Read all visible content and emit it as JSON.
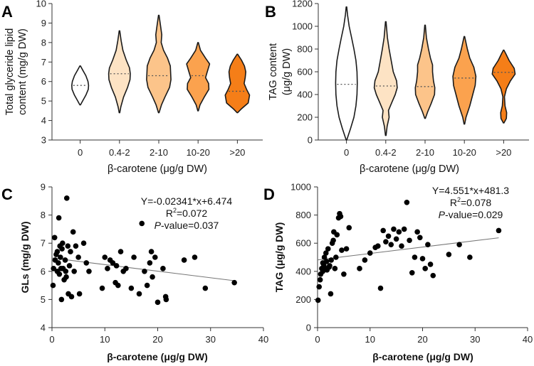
{
  "panels": {
    "A": "A",
    "B": "B",
    "C": "C",
    "D": "D"
  },
  "colors": {
    "violin": [
      "#ffffff",
      "#fde3c4",
      "#fcc48a",
      "#fba24e",
      "#f57e18"
    ],
    "outline": "#1a1a1a",
    "dots": "#000000",
    "fit_line": "#777777"
  },
  "chart_data": [
    {
      "id": "A",
      "type": "violin",
      "categories": [
        "0",
        "0.4-2",
        "2-10",
        "10-20",
        ">20"
      ],
      "xlabel": "β-carotene (μg/g DW)",
      "ylabel": "Total glyceride lipid content (mg/g DW)",
      "ylim": [
        3,
        10
      ],
      "yticks": [
        "3",
        "4",
        "5",
        "6",
        "7",
        "8",
        "9",
        "10"
      ],
      "series": [
        {
          "name": "0",
          "min": 4.8,
          "max": 6.8,
          "median": 5.8,
          "shape": [
            [
              4.8,
              0.02
            ],
            [
              5.0,
              0.18
            ],
            [
              5.3,
              0.42
            ],
            [
              5.6,
              0.6
            ],
            [
              5.8,
              0.62
            ],
            [
              6.0,
              0.58
            ],
            [
              6.3,
              0.42
            ],
            [
              6.6,
              0.18
            ],
            [
              6.8,
              0.02
            ]
          ]
        },
        {
          "name": "0.4-2",
          "min": 4.4,
          "max": 8.6,
          "median": 6.4,
          "shape": [
            [
              4.4,
              0.02
            ],
            [
              4.7,
              0.1
            ],
            [
              5.2,
              0.3
            ],
            [
              5.7,
              0.6
            ],
            [
              6.1,
              0.78
            ],
            [
              6.4,
              0.8
            ],
            [
              6.7,
              0.74
            ],
            [
              7.1,
              0.5
            ],
            [
              7.6,
              0.25
            ],
            [
              8.1,
              0.12
            ],
            [
              8.6,
              0.02
            ]
          ]
        },
        {
          "name": "2-10",
          "min": 4.4,
          "max": 9.4,
          "median": 6.3,
          "shape": [
            [
              4.4,
              0.02
            ],
            [
              4.8,
              0.2
            ],
            [
              5.2,
              0.45
            ],
            [
              5.7,
              0.8
            ],
            [
              6.1,
              0.9
            ],
            [
              6.4,
              0.88
            ],
            [
              6.8,
              0.85
            ],
            [
              7.2,
              0.65
            ],
            [
              7.6,
              0.35
            ],
            [
              8.0,
              0.18
            ],
            [
              8.4,
              0.22
            ],
            [
              8.8,
              0.14
            ],
            [
              9.4,
              0.02
            ]
          ]
        },
        {
          "name": "10-20",
          "min": 4.5,
          "max": 8.0,
          "median": 6.3,
          "shape": [
            [
              4.5,
              0.02
            ],
            [
              4.8,
              0.14
            ],
            [
              5.2,
              0.45
            ],
            [
              5.6,
              0.8
            ],
            [
              5.9,
              0.78
            ],
            [
              6.2,
              0.55
            ],
            [
              6.5,
              0.68
            ],
            [
              6.9,
              0.85
            ],
            [
              7.2,
              0.55
            ],
            [
              7.6,
              0.18
            ],
            [
              8.0,
              0.02
            ]
          ]
        },
        {
          "name": ">20",
          "min": 4.4,
          "max": 7.4,
          "median": 5.5,
          "shape": [
            [
              4.4,
              0.02
            ],
            [
              4.6,
              0.3
            ],
            [
              4.9,
              0.8
            ],
            [
              5.3,
              0.9
            ],
            [
              5.6,
              0.68
            ],
            [
              5.9,
              0.5
            ],
            [
              6.2,
              0.58
            ],
            [
              6.5,
              0.62
            ],
            [
              6.8,
              0.52
            ],
            [
              7.1,
              0.3
            ],
            [
              7.4,
              0.02
            ]
          ]
        }
      ]
    },
    {
      "id": "B",
      "type": "violin",
      "categories": [
        "0",
        "0.4-2",
        "2-10",
        "10-20",
        ">20"
      ],
      "xlabel": "β-carotene (μg/g DW)",
      "ylabel": "TAG content (μg/g DW)",
      "ylim": [
        0,
        1200
      ],
      "yticks": [
        "0",
        "200",
        "400",
        "600",
        "800",
        "1000",
        "1200"
      ],
      "series": [
        {
          "name": "0",
          "min": 0,
          "max": 1170,
          "median": 490,
          "shape": [
            [
              0,
              0.02
            ],
            [
              100,
              0.3
            ],
            [
              200,
              0.55
            ],
            [
              300,
              0.7
            ],
            [
              400,
              0.78
            ],
            [
              500,
              0.8
            ],
            [
              600,
              0.78
            ],
            [
              700,
              0.7
            ],
            [
              800,
              0.55
            ],
            [
              900,
              0.38
            ],
            [
              1000,
              0.2
            ],
            [
              1100,
              0.08
            ],
            [
              1170,
              0.02
            ]
          ]
        },
        {
          "name": "0.4-2",
          "min": 40,
          "max": 1040,
          "median": 475,
          "shape": [
            [
              40,
              0.02
            ],
            [
              120,
              0.1
            ],
            [
              200,
              0.25
            ],
            [
              260,
              0.2
            ],
            [
              330,
              0.45
            ],
            [
              400,
              0.7
            ],
            [
              460,
              0.85
            ],
            [
              520,
              0.8
            ],
            [
              600,
              0.55
            ],
            [
              700,
              0.4
            ],
            [
              800,
              0.25
            ],
            [
              900,
              0.12
            ],
            [
              1040,
              0.02
            ]
          ]
        },
        {
          "name": "2-10",
          "min": 190,
          "max": 1010,
          "median": 470,
          "shape": [
            [
              190,
              0.02
            ],
            [
              250,
              0.2
            ],
            [
              320,
              0.45
            ],
            [
              400,
              0.7
            ],
            [
              460,
              0.72
            ],
            [
              520,
              0.62
            ],
            [
              600,
              0.55
            ],
            [
              660,
              0.55
            ],
            [
              720,
              0.4
            ],
            [
              800,
              0.25
            ],
            [
              900,
              0.1
            ],
            [
              1010,
              0.02
            ]
          ]
        },
        {
          "name": "10-20",
          "min": 140,
          "max": 910,
          "median": 545,
          "shape": [
            [
              140,
              0.02
            ],
            [
              200,
              0.12
            ],
            [
              300,
              0.4
            ],
            [
              400,
              0.62
            ],
            [
              480,
              0.8
            ],
            [
              560,
              0.85
            ],
            [
              640,
              0.7
            ],
            [
              720,
              0.4
            ],
            [
              800,
              0.22
            ],
            [
              910,
              0.02
            ]
          ]
        },
        {
          "name": ">20",
          "min": 150,
          "max": 790,
          "median": 595,
          "shape": [
            [
              150,
              0.02
            ],
            [
              190,
              0.2
            ],
            [
              240,
              0.22
            ],
            [
              300,
              0.1
            ],
            [
              380,
              0.06
            ],
            [
              450,
              0.2
            ],
            [
              520,
              0.5
            ],
            [
              580,
              0.85
            ],
            [
              630,
              0.78
            ],
            [
              700,
              0.4
            ],
            [
              760,
              0.15
            ],
            [
              790,
              0.02
            ]
          ]
        }
      ]
    },
    {
      "id": "C",
      "type": "scatter",
      "xlabel": "β-carotene (μg/g DW)",
      "ylabel": "GLs (mg/g  DW)",
      "xlim": [
        0,
        40
      ],
      "ylim": [
        4,
        9
      ],
      "xticks": [
        "0",
        "10",
        "20",
        "30",
        "40"
      ],
      "yticks": [
        "4",
        "5",
        "6",
        "7",
        "8",
        "9"
      ],
      "fit": {
        "slope": -0.02341,
        "intercept": 6.474,
        "x_range": [
          0,
          34.5
        ]
      },
      "annotation": {
        "equation": "Y=-0.02341*x+6.474",
        "r2_prefix": "R",
        "r2_sup": "2",
        "r2_value": "=0.072",
        "p_label": "P",
        "p_value": "-value=0.037"
      },
      "points": [
        [
          0.2,
          5.5
        ],
        [
          0.3,
          6.1
        ],
        [
          0.5,
          7.2
        ],
        [
          0.6,
          6.4
        ],
        [
          0.8,
          6.6
        ],
        [
          1.0,
          6.0
        ],
        [
          1.0,
          6.7
        ],
        [
          1.2,
          6.3
        ],
        [
          1.3,
          7.9
        ],
        [
          1.4,
          5.9
        ],
        [
          1.5,
          6.9
        ],
        [
          1.6,
          6.5
        ],
        [
          1.7,
          6.1
        ],
        [
          1.8,
          5.0
        ],
        [
          1.9,
          6.8
        ],
        [
          2.0,
          7.0
        ],
        [
          2.1,
          6.1
        ],
        [
          2.3,
          5.7
        ],
        [
          2.5,
          6.4
        ],
        [
          2.6,
          6.0
        ],
        [
          2.7,
          5.8
        ],
        [
          2.8,
          8.6
        ],
        [
          3.0,
          6.9
        ],
        [
          3.1,
          5.2
        ],
        [
          3.3,
          6.2
        ],
        [
          3.5,
          6.7
        ],
        [
          3.7,
          5.1
        ],
        [
          4.0,
          7.4
        ],
        [
          4.2,
          6.0
        ],
        [
          4.5,
          6.9
        ],
        [
          5.0,
          6.5
        ],
        [
          5.2,
          5.2
        ],
        [
          6.0,
          7.0
        ],
        [
          6.5,
          6.3
        ],
        [
          7.0,
          6.0
        ],
        [
          9.5,
          5.4
        ],
        [
          10.0,
          6.5
        ],
        [
          10.5,
          6.1
        ],
        [
          11.0,
          6.4
        ],
        [
          11.5,
          6.3
        ],
        [
          12.0,
          5.6
        ],
        [
          12.2,
          6.2
        ],
        [
          12.5,
          5.5
        ],
        [
          13.0,
          6.7
        ],
        [
          13.5,
          6.0
        ],
        [
          14.0,
          6.1
        ],
        [
          15.0,
          5.4
        ],
        [
          15.5,
          6.5
        ],
        [
          16.5,
          5.2
        ],
        [
          17.0,
          7.7
        ],
        [
          17.5,
          6.0
        ],
        [
          18.0,
          5.5
        ],
        [
          18.5,
          6.3
        ],
        [
          18.8,
          6.7
        ],
        [
          19.0,
          5.8
        ],
        [
          19.5,
          6.5
        ],
        [
          20.0,
          4.9
        ],
        [
          21.0,
          6.1
        ],
        [
          21.5,
          5.1
        ],
        [
          21.6,
          5.0
        ],
        [
          25.0,
          6.4
        ],
        [
          27.0,
          6.5
        ],
        [
          29.0,
          5.4
        ],
        [
          34.5,
          5.6
        ]
      ]
    },
    {
      "id": "D",
      "type": "scatter",
      "xlabel": "β-carotene (μg/g DW)",
      "ylabel": "TAG (μg/g DW)",
      "xlim": [
        0,
        40
      ],
      "ylim": [
        0,
        1000
      ],
      "xticks": [
        "0",
        "10",
        "20",
        "30",
        "40"
      ],
      "yticks": [
        "0",
        "200",
        "400",
        "600",
        "800",
        "1000"
      ],
      "fit": {
        "slope": 4.551,
        "intercept": 481.3,
        "x_range": [
          0,
          34.5
        ]
      },
      "annotation": {
        "equation": "Y=4.551*x+481.3",
        "r2_prefix": "R",
        "r2_sup": "2",
        "r2_value": "=0.078",
        "p_label": "P",
        "p_value": "-value=0.029"
      },
      "points": [
        [
          0.1,
          195
        ],
        [
          0.3,
          290
        ],
        [
          0.5,
          340
        ],
        [
          0.6,
          380
        ],
        [
          0.8,
          420
        ],
        [
          1.0,
          400
        ],
        [
          1.0,
          460
        ],
        [
          1.2,
          440
        ],
        [
          1.3,
          500
        ],
        [
          1.5,
          420
        ],
        [
          1.6,
          530
        ],
        [
          1.7,
          470
        ],
        [
          1.8,
          410
        ],
        [
          2.0,
          560
        ],
        [
          2.2,
          430
        ],
        [
          2.3,
          440
        ],
        [
          2.5,
          240
        ],
        [
          2.6,
          480
        ],
        [
          2.8,
          600
        ],
        [
          3.0,
          620
        ],
        [
          3.1,
          680
        ],
        [
          3.3,
          420
        ],
        [
          3.5,
          500
        ],
        [
          3.7,
          660
        ],
        [
          4.0,
          780
        ],
        [
          4.2,
          810
        ],
        [
          4.4,
          790
        ],
        [
          4.6,
          550
        ],
        [
          5.0,
          380
        ],
        [
          5.5,
          560
        ],
        [
          6.0,
          710
        ],
        [
          8.0,
          420
        ],
        [
          9.0,
          480
        ],
        [
          10.0,
          530
        ],
        [
          11.0,
          570
        ],
        [
          11.5,
          580
        ],
        [
          12.0,
          280
        ],
        [
          12.5,
          690
        ],
        [
          13.0,
          610
        ],
        [
          13.5,
          650
        ],
        [
          14.0,
          590
        ],
        [
          14.5,
          700
        ],
        [
          15.0,
          630
        ],
        [
          15.5,
          680
        ],
        [
          16.0,
          580
        ],
        [
          16.5,
          700
        ],
        [
          17.0,
          890
        ],
        [
          17.5,
          620
        ],
        [
          18.0,
          390
        ],
        [
          18.5,
          500
        ],
        [
          19.0,
          680
        ],
        [
          19.5,
          640
        ],
        [
          20.0,
          490
        ],
        [
          20.5,
          420
        ],
        [
          21.0,
          590
        ],
        [
          21.5,
          450
        ],
        [
          22.0,
          370
        ],
        [
          25.0,
          520
        ],
        [
          27.0,
          590
        ],
        [
          29.0,
          500
        ],
        [
          34.5,
          690
        ]
      ]
    }
  ]
}
